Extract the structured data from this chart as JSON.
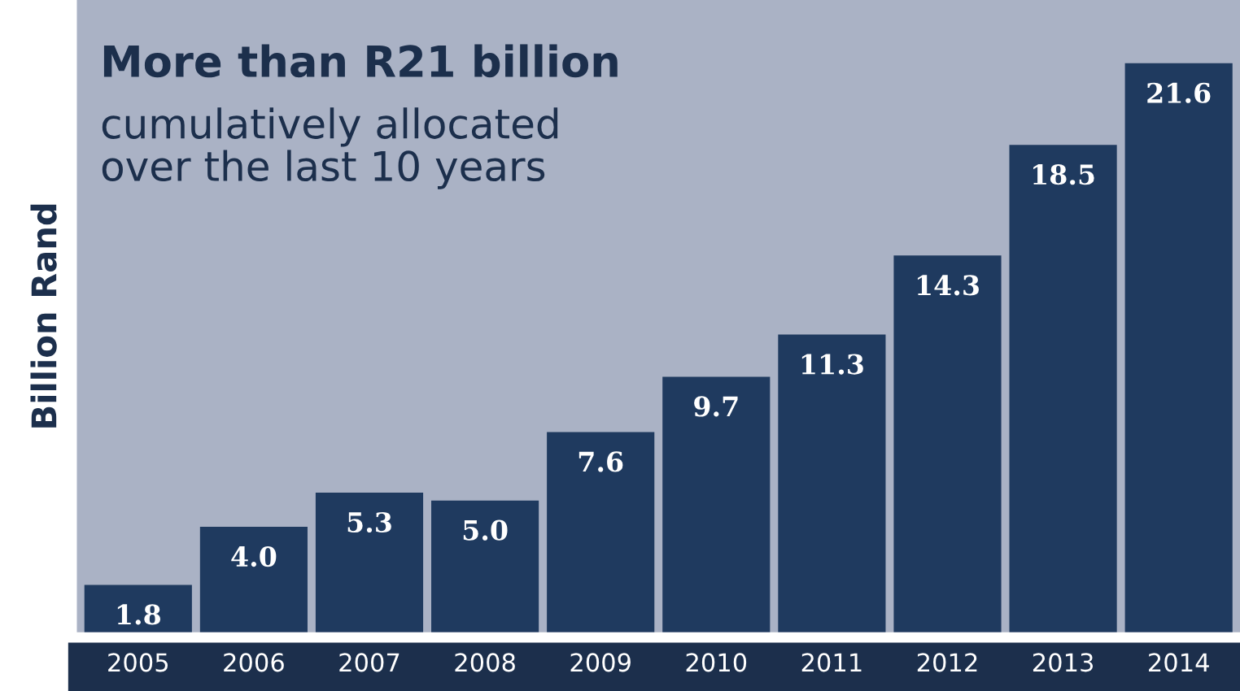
{
  "chart_data": {
    "type": "bar",
    "title": "More than R21 billion",
    "subtitle": "cumulatively allocated\nover the last 10 years",
    "ylabel": "Billion Rand",
    "categories": [
      "2005",
      "2006",
      "2007",
      "2008",
      "2009",
      "2010",
      "2011",
      "2012",
      "2013",
      "2014"
    ],
    "values": [
      1.8,
      4.0,
      5.3,
      5.0,
      7.6,
      9.7,
      11.3,
      14.3,
      18.5,
      21.6
    ],
    "value_labels": [
      "1.8",
      "4.0",
      "5.3",
      "5.0",
      "7.6",
      "9.7",
      "11.3",
      "14.3",
      "18.5",
      "21.6"
    ],
    "color": "#1f3a5f",
    "ylim": [
      0,
      24
    ],
    "grid": false
  }
}
